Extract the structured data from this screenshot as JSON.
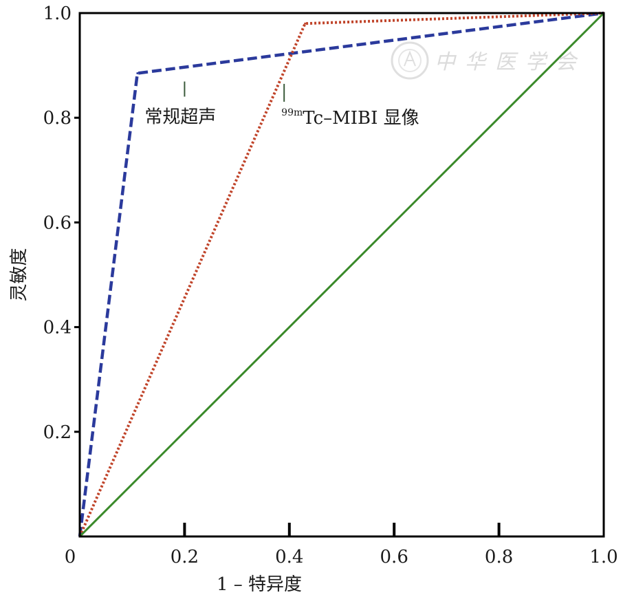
{
  "chart_data": {
    "type": "line",
    "xlabel": "1 – 特异度",
    "ylabel": "灵敏度",
    "xlim": [
      0,
      1
    ],
    "ylim": [
      0,
      1
    ],
    "x_ticks": [
      "0",
      "0.2",
      "0.4",
      "0.6",
      "0.8",
      "1.0"
    ],
    "y_ticks": [
      "0.2",
      "0.4",
      "0.6",
      "0.8",
      "1.0"
    ],
    "grid": false,
    "series": [
      {
        "name": "常规超声",
        "color": "#2b3a9c",
        "style": "dashed",
        "points": [
          [
            0,
            0
          ],
          [
            0.11,
            0.885
          ],
          [
            1.0,
            1.0
          ]
        ]
      },
      {
        "name": "99mTc–MIBI 显像",
        "color": "#c0442a",
        "style": "dotted",
        "points": [
          [
            0,
            0
          ],
          [
            0.43,
            0.98
          ],
          [
            1.0,
            1.0
          ]
        ]
      },
      {
        "color": "#3a8a2a",
        "style": "solid",
        "points": [
          [
            0,
            0
          ],
          [
            1.0,
            1.0
          ]
        ]
      }
    ],
    "annotations": [
      {
        "text": "常规超声",
        "x": 0.2,
        "y": 0.87
      },
      {
        "sup": "99m",
        "text": "Tc–MIBI 显像",
        "x": 0.4,
        "y": 0.86
      }
    ]
  },
  "watermark": {
    "text": "中华医学会",
    "color": "#d8d8d8"
  }
}
